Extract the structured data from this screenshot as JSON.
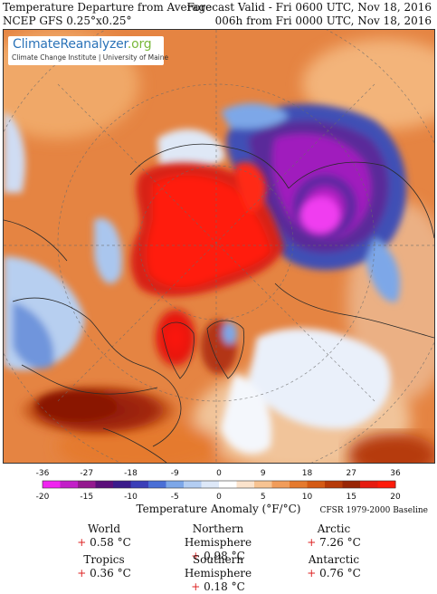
{
  "header": {
    "title": "Temperature Departure from Average",
    "model": "NCEP GFS 0.25°x0.25°",
    "valid": "Forecast Valid - Fri 0600 UTC, Nov 18, 2016",
    "lead": "006h from Fri 0000 UTC, Nov 18, 2016"
  },
  "logo": {
    "name_main": "ClimateReanalyzer",
    "name_tld": ".org",
    "subtitle": "Climate Change Institute | University of Maine"
  },
  "legend": {
    "f_ticks": [
      "-36",
      "-27",
      "-18",
      "-9",
      "0",
      "9",
      "18",
      "27",
      "36"
    ],
    "c_ticks": [
      "-20",
      "-15",
      "-10",
      "-5",
      "0",
      "5",
      "10",
      "15",
      "20"
    ],
    "title": "Temperature Anomaly (°F/°C)",
    "baseline": "CFSR 1979-2000 Baseline",
    "colors": [
      "#f023f0",
      "#c21ec8",
      "#94188f",
      "#5b0e7a",
      "#3a1a8a",
      "#3b3fb8",
      "#4a6fd6",
      "#7da7e8",
      "#b3cdf2",
      "#dde8f8",
      "#ffffff",
      "#fbe3cc",
      "#f7c392",
      "#f19c5a",
      "#e57a2e",
      "#d45a14",
      "#b63a08",
      "#982505",
      "#e61b10",
      "#ff1a0a"
    ]
  },
  "stats": [
    {
      "region": "World",
      "sign": "+",
      "value": "0.58 °C"
    },
    {
      "region": "Northern Hemisphere",
      "sign": "+",
      "value": "0.98 °C"
    },
    {
      "region": "Arctic",
      "sign": "+",
      "value": "7.26 °C"
    },
    {
      "region": "Tropics",
      "sign": "+",
      "value": "0.36 °C"
    },
    {
      "region": "Southern Hemisphere",
      "sign": "+",
      "value": "0.18 °C"
    },
    {
      "region": "Antarctic",
      "sign": "+",
      "value": "0.76 °C"
    }
  ]
}
